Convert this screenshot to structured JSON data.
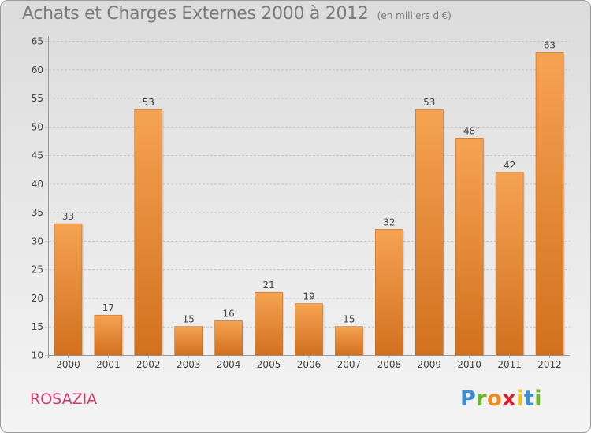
{
  "title": "Achats et Charges Externes 2000 à 2012",
  "unit": "(en milliers d'€)",
  "commune": "ROSAZIA",
  "logo_text": "Proxiti",
  "colors": {
    "bar_top": "#f5a352",
    "bar_bottom": "#d2711f",
    "grid": "#c4c4c4",
    "axis_text": "#444444"
  },
  "chart_data": {
    "type": "bar",
    "title": "Achats et Charges Externes 2000 à 2012",
    "ylabel": "",
    "xlabel": "",
    "ylim": [
      10,
      65
    ],
    "yticks": [
      10,
      15,
      20,
      25,
      30,
      35,
      40,
      45,
      50,
      55,
      60,
      65
    ],
    "categories": [
      "2000",
      "2001",
      "2002",
      "2003",
      "2004",
      "2005",
      "2006",
      "2007",
      "2008",
      "2009",
      "2010",
      "2011",
      "2012"
    ],
    "values": [
      33,
      17,
      53,
      15,
      16,
      21,
      19,
      15,
      32,
      53,
      48,
      42,
      63
    ],
    "grid": true
  }
}
